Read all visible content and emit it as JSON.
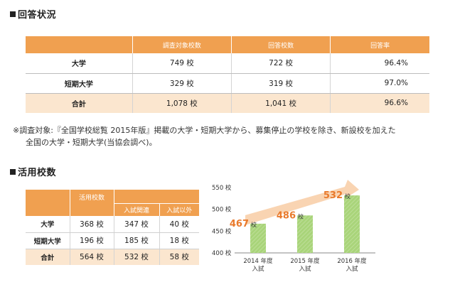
{
  "section1": {
    "title": "回答状況",
    "headers": [
      "",
      "調査対象校数",
      "回答校数",
      "回答率"
    ],
    "rows": [
      {
        "label": "大学",
        "target": "749 校",
        "answered": "722 校",
        "rate": "96.4%"
      },
      {
        "label": "短期大学",
        "target": "329 校",
        "answered": "319 校",
        "rate": "97.0%"
      },
      {
        "label": "合計",
        "target": "1,078 校",
        "answered": "1,041 校",
        "rate": "96.6%"
      }
    ]
  },
  "note": {
    "line1": "※調査対象:『全国学校総覧 2015年版』掲載の大学・短期大学から、募集停止の学校を除き、新設校を加えた",
    "line2": "全国の大学・短期大学(当協会調べ)。"
  },
  "section2": {
    "title": "活用校数",
    "header_main": "活用校数",
    "header_sub1": "入試関連",
    "header_sub2": "入試以外",
    "rows": [
      {
        "label": "大学",
        "total": "368 校",
        "exam": "347 校",
        "other": "40 校"
      },
      {
        "label": "短期大学",
        "total": "196 校",
        "exam": "185 校",
        "other": "18 校"
      },
      {
        "label": "合計",
        "total": "564 校",
        "exam": "532 校",
        "other": "58 校"
      }
    ]
  },
  "chart_data": {
    "type": "bar",
    "categories": [
      {
        "line1": "2014 年度",
        "line2": "入試"
      },
      {
        "line1": "2015 年度",
        "line2": "入試"
      },
      {
        "line1": "2016 年度",
        "line2": "入試"
      }
    ],
    "values": [
      467,
      486,
      532
    ],
    "value_suffix": "校",
    "ylim": [
      400,
      550
    ],
    "yticks": [
      {
        "value": 550,
        "label": "550 校"
      },
      {
        "value": 500,
        "label": "500 校"
      },
      {
        "value": 450,
        "label": "450 校"
      },
      {
        "value": 400,
        "label": "400 校"
      }
    ],
    "bar_color": "#a9d47a",
    "value_color": "#e97a2c",
    "arrow_color": "#f8cda5"
  }
}
